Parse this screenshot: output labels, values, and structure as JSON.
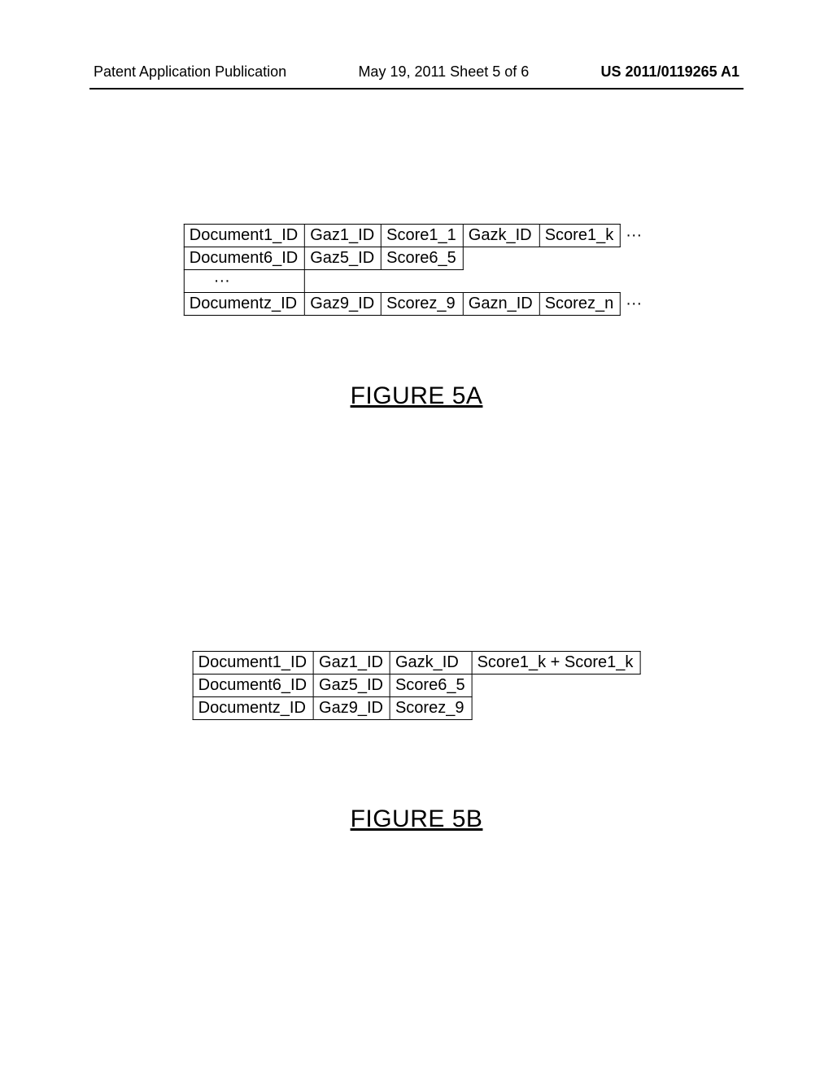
{
  "header": {
    "left": "Patent Application Publication",
    "center": "May 19, 2011  Sheet 5 of 6",
    "right": "US 2011/0119265 A1"
  },
  "figureA": {
    "caption": "FIGURE 5A",
    "rows": [
      [
        "Document1_ID",
        "Gaz1_ID",
        "Score1_1",
        "Gazk_ID",
        "Score1_k",
        "···"
      ],
      [
        "Document6_ID",
        "Gaz5_ID",
        "Score6_5"
      ],
      [
        "···"
      ],
      [
        "Documentz_ID",
        "Gaz9_ID",
        "Scorez_9",
        "Gazn_ID",
        "Scorez_n",
        "···"
      ]
    ]
  },
  "figureB": {
    "caption": "FIGURE 5B",
    "rows": [
      [
        "Document1_ID",
        "Gaz1_ID",
        "Gazk_ID",
        "Score1_k + Score1_k"
      ],
      [
        "Document6_ID",
        "Gaz5_ID",
        "Score6_5"
      ],
      [
        "Documentz_ID",
        "Gaz9_ID",
        "Scorez_9"
      ]
    ]
  }
}
